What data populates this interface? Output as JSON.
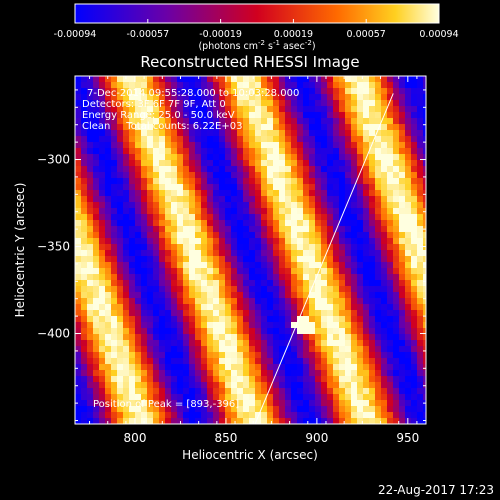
{
  "chart_data": {
    "type": "heatmap",
    "title": "Reconstructed RHESSI Image",
    "xlabel": "Heliocentric X (arcsec)",
    "ylabel": "Heliocentric Y (arcsec)",
    "xlim": [
      767,
      960
    ],
    "ylim": [
      -452,
      -252
    ],
    "xticks": [
      800,
      850,
      900,
      950
    ],
    "yticks": [
      -300,
      -350,
      -400
    ],
    "colorbar": {
      "range": [
        -0.00094,
        0.00094
      ],
      "ticks": [
        "-0.00094",
        "-0.00057",
        "-0.00019",
        "0.00019",
        "0.00057",
        "0.00094"
      ],
      "unit_main": "(photons cm",
      "unit_sup1": "-2",
      "unit_mid": " s",
      "unit_sup2": "-1",
      "unit_mid2": " asec",
      "unit_sup3": "-2",
      "unit_end": ")",
      "colormap": "blue-purple-red-orange-yellow-white"
    },
    "info_lines": [
      "7-Dec-2014 09:55:28.000 to 10:03:28.000",
      "Detectors: 3F 6F 7F 9F, Att 0",
      "Energy Range: 25.0 - 50.0 keV",
      "Clean     Total counts: 6.22E+03"
    ],
    "peak_label": "Position of Peak = [893,-396]",
    "peak": [
      893,
      -396
    ],
    "limb_line": [
      [
        866,
        -452
      ],
      [
        942,
        -262
      ]
    ],
    "stripes_description": "alternating positive (bright) and negative (blue) diagonal bands",
    "timestamp": "22-Aug-2017 17:23"
  }
}
